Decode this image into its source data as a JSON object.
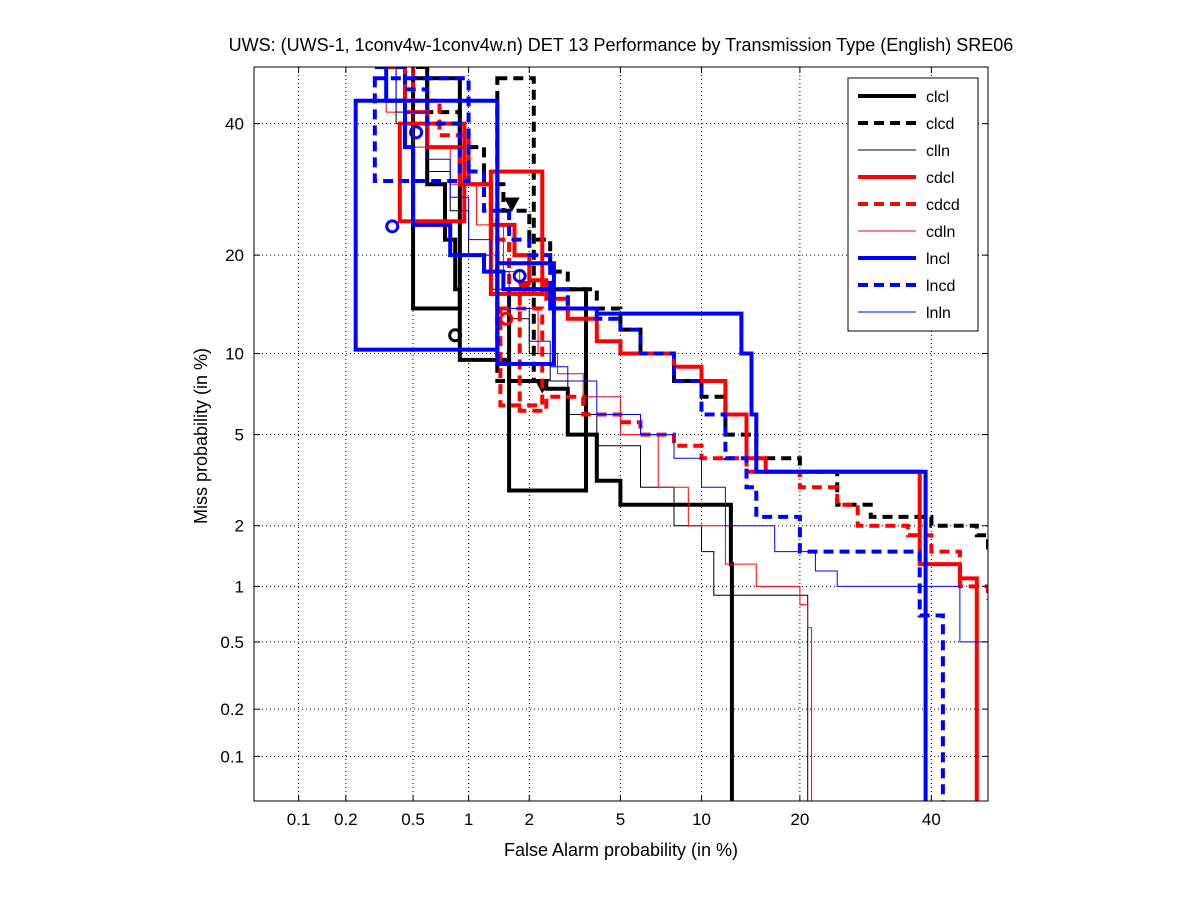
{
  "chart_data": {
    "type": "line",
    "subtype": "det-curve",
    "title": "UWS: (UWS-1, 1conv4w-1conv4w.n) DET 13 Performance by Transmission Type (English) SRE06",
    "xlabel": "False Alarm probability (in %)",
    "ylabel": "Miss probability (in %)",
    "xlim": [
      0.05,
      50
    ],
    "ylim": [
      0.05,
      50
    ],
    "xscale": "probit",
    "yscale": "probit",
    "grid": true,
    "legend_position": "top-right",
    "x_ticks": [
      0.1,
      0.2,
      0.5,
      1,
      2,
      5,
      10,
      20,
      40
    ],
    "x_tick_labels": [
      "0.1",
      "0.2",
      "0.5",
      "1",
      "2",
      "5",
      "10",
      "20",
      "40"
    ],
    "y_ticks": [
      0.1,
      0.2,
      0.5,
      1,
      2,
      5,
      10,
      20,
      40
    ],
    "y_tick_labels": [
      "0.1",
      "0.2",
      "0.5",
      "1",
      "2",
      "5",
      "10",
      "20",
      "40"
    ],
    "series": [
      {
        "name": "clcl",
        "color": "#000000",
        "style": "solid",
        "width": "thick",
        "points": [
          [
            0.52,
            50
          ],
          [
            0.6,
            30
          ],
          [
            0.75,
            22
          ],
          [
            0.85,
            16
          ],
          [
            0.9,
            12
          ],
          [
            0.9,
            9.5
          ],
          [
            1.6,
            9.5
          ],
          [
            1.6,
            8
          ],
          [
            2.4,
            8
          ],
          [
            2.4,
            7.5
          ],
          [
            3,
            7.5
          ],
          [
            3,
            5
          ],
          [
            4,
            5
          ],
          [
            4,
            3.2
          ],
          [
            5,
            3.2
          ],
          [
            5,
            2.5
          ],
          [
            12.5,
            2.5
          ],
          [
            12.5,
            1.3
          ],
          [
            12.6,
            0.05
          ]
        ],
        "markers": [
          {
            "x": 0.85,
            "y": 11.5,
            "shape": "circle"
          },
          {
            "x": 2.3,
            "y": 7.7,
            "shape": "triangle"
          }
        ],
        "boxes": [
          [
            0.5,
            14,
            0.9,
            48
          ],
          [
            1.6,
            2.9,
            3.6,
            16
          ]
        ]
      },
      {
        "name": "clcd",
        "color": "#000000",
        "style": "dashed",
        "width": "thick",
        "points": [
          [
            0.55,
            50
          ],
          [
            0.6,
            42
          ],
          [
            0.9,
            36
          ],
          [
            1.2,
            30
          ],
          [
            1.5,
            26
          ],
          [
            2,
            22
          ],
          [
            2.5,
            18
          ],
          [
            3,
            16
          ],
          [
            4,
            14
          ],
          [
            5,
            12
          ],
          [
            6,
            10
          ],
          [
            8,
            8
          ],
          [
            10,
            7
          ],
          [
            12,
            5
          ],
          [
            15,
            4
          ],
          [
            20,
            3.5
          ],
          [
            25,
            2.5
          ],
          [
            30,
            2.2
          ],
          [
            40,
            2
          ],
          [
            48,
            1.8
          ],
          [
            50,
            1.5
          ]
        ],
        "markers": [
          {
            "x": 1.65,
            "y": 27,
            "shape": "triangle"
          }
        ],
        "boxes": [
          [
            1.4,
            8,
            2.1,
            48
          ]
        ]
      },
      {
        "name": "clln",
        "color": "#000000",
        "style": "solid",
        "width": "thin",
        "points": [
          [
            0.35,
            50
          ],
          [
            0.4,
            40
          ],
          [
            0.6,
            32
          ],
          [
            0.8,
            26
          ],
          [
            1,
            20
          ],
          [
            1.3,
            16
          ],
          [
            1.6,
            13
          ],
          [
            2,
            10
          ],
          [
            2.5,
            8
          ],
          [
            3,
            6
          ],
          [
            4,
            4.5
          ],
          [
            6,
            3
          ],
          [
            8,
            2
          ],
          [
            10,
            1.5
          ],
          [
            11,
            0.9
          ],
          [
            21,
            0.9
          ],
          [
            21,
            0.05
          ]
        ],
        "markers": [],
        "boxes": []
      },
      {
        "name": "cdcl",
        "color": "#ff0000",
        "style": "solid",
        "width": "thick",
        "points": [
          [
            0.35,
            50
          ],
          [
            0.45,
            42
          ],
          [
            0.6,
            36
          ],
          [
            0.9,
            30
          ],
          [
            1.3,
            24
          ],
          [
            1.7,
            20
          ],
          [
            2,
            17
          ],
          [
            2.4,
            15
          ],
          [
            3,
            13
          ],
          [
            4,
            11
          ],
          [
            5,
            10
          ],
          [
            8,
            9
          ],
          [
            10,
            8
          ],
          [
            12,
            6
          ],
          [
            14,
            4
          ],
          [
            16,
            3.5
          ],
          [
            38,
            3.5
          ],
          [
            38,
            1.3
          ],
          [
            45,
            1.3
          ],
          [
            45,
            1.1
          ],
          [
            48,
            1.1
          ],
          [
            48,
            0.05
          ]
        ],
        "markers": [
          {
            "x": 1.9,
            "y": 16.2,
            "shape": "triangle"
          }
        ],
        "boxes": [
          [
            0.42,
            24.5,
            0.95,
            40
          ],
          [
            1.3,
            15.5,
            2.3,
            32
          ]
        ]
      },
      {
        "name": "cdcd",
        "color": "#ff0000",
        "style": "dashed",
        "width": "thick",
        "points": [
          [
            0.4,
            50
          ],
          [
            0.5,
            44
          ],
          [
            0.7,
            38
          ],
          [
            1,
            30
          ],
          [
            1.3,
            22
          ],
          [
            1.6,
            16
          ],
          [
            1.8,
            12
          ],
          [
            1.8,
            8.5
          ],
          [
            1.8,
            6.2
          ],
          [
            2.4,
            6.2
          ],
          [
            2.4,
            7
          ],
          [
            3,
            7
          ],
          [
            3.5,
            6
          ],
          [
            5,
            5.6
          ],
          [
            6,
            5
          ],
          [
            8,
            4.5
          ],
          [
            10,
            4
          ],
          [
            14,
            3.5
          ],
          [
            20,
            3
          ],
          [
            25,
            2.5
          ],
          [
            28,
            2
          ],
          [
            36,
            1.8
          ],
          [
            40,
            1.5
          ],
          [
            45,
            1
          ],
          [
            50,
            0.85
          ]
        ],
        "markers": [
          {
            "x": 1.55,
            "y": 13,
            "shape": "circle"
          }
        ],
        "boxes": [
          [
            1.45,
            6.5,
            2.3,
            14
          ]
        ]
      },
      {
        "name": "cdln",
        "color": "#ff0000",
        "style": "solid",
        "width": "thin",
        "points": [
          [
            0.3,
            50
          ],
          [
            0.35,
            42
          ],
          [
            0.5,
            36
          ],
          [
            0.8,
            30
          ],
          [
            1.1,
            24
          ],
          [
            1.5,
            18
          ],
          [
            1.8,
            14
          ],
          [
            2.2,
            10
          ],
          [
            2.7,
            8.5
          ],
          [
            3.5,
            7
          ],
          [
            5,
            5
          ],
          [
            7,
            3
          ],
          [
            9,
            2
          ],
          [
            12,
            1.3
          ],
          [
            15,
            1
          ],
          [
            20,
            0.8
          ],
          [
            21,
            0.6
          ],
          [
            21.5,
            0.05
          ]
        ],
        "markers": [],
        "boxes": []
      },
      {
        "name": "lncl",
        "color": "#0000ff",
        "style": "solid",
        "width": "thick",
        "points": [
          [
            0.3,
            50
          ],
          [
            0.35,
            44
          ],
          [
            0.45,
            36
          ],
          [
            0.5,
            24
          ],
          [
            0.6,
            24
          ],
          [
            0.8,
            20
          ],
          [
            1.2,
            18
          ],
          [
            1.5,
            16
          ],
          [
            2.5,
            14
          ],
          [
            4,
            13.5
          ],
          [
            13.5,
            13.5
          ],
          [
            13.5,
            10
          ],
          [
            14.5,
            10
          ],
          [
            14.5,
            6
          ],
          [
            15,
            6
          ],
          [
            15,
            3.5
          ],
          [
            39,
            3.5
          ],
          [
            39,
            0.05
          ]
        ],
        "markers": [
          {
            "x": 0.38,
            "y": 23.8,
            "shape": "circle"
          },
          {
            "x": 1.8,
            "y": 17.5,
            "shape": "circle"
          }
        ],
        "boxes": [
          [
            0.23,
            10.3,
            1.4,
            44
          ],
          [
            1.4,
            9.2,
            2.6,
            19
          ]
        ]
      },
      {
        "name": "lncd",
        "color": "#0000ff",
        "style": "dashed",
        "width": "thick",
        "points": [
          [
            0.4,
            50
          ],
          [
            0.45,
            46
          ],
          [
            0.6,
            40
          ],
          [
            0.9,
            32
          ],
          [
            1.2,
            26
          ],
          [
            1.6,
            22
          ],
          [
            2,
            20
          ],
          [
            2.5,
            16
          ],
          [
            3,
            14
          ],
          [
            4,
            13
          ],
          [
            5,
            12
          ],
          [
            6,
            10
          ],
          [
            8,
            8
          ],
          [
            10,
            6
          ],
          [
            12,
            4
          ],
          [
            14,
            3
          ],
          [
            15,
            2.2
          ],
          [
            20,
            2.2
          ],
          [
            20,
            1.5
          ],
          [
            38,
            1.5
          ],
          [
            38,
            0.7
          ],
          [
            42,
            0.7
          ],
          [
            42,
            0.05
          ]
        ],
        "markers": [
          {
            "x": 0.52,
            "y": 38.5,
            "shape": "circle"
          }
        ],
        "boxes": [
          [
            0.3,
            30.5,
            1.0,
            48
          ]
        ]
      },
      {
        "name": "lnln",
        "color": "#0000ff",
        "style": "solid",
        "width": "thin",
        "points": [
          [
            0.35,
            50
          ],
          [
            0.4,
            42
          ],
          [
            0.6,
            34
          ],
          [
            0.8,
            28
          ],
          [
            1,
            22
          ],
          [
            1.3,
            18
          ],
          [
            1.6,
            14
          ],
          [
            2,
            11
          ],
          [
            2.5,
            9
          ],
          [
            3,
            8
          ],
          [
            4,
            6
          ],
          [
            6,
            5
          ],
          [
            8,
            4
          ],
          [
            10,
            3
          ],
          [
            12,
            2
          ],
          [
            17,
            1.5
          ],
          [
            22,
            1.2
          ],
          [
            25,
            1
          ],
          [
            40,
            1
          ],
          [
            45,
            0.5
          ],
          [
            50,
            0.5
          ]
        ],
        "markers": [],
        "boxes": []
      }
    ]
  }
}
